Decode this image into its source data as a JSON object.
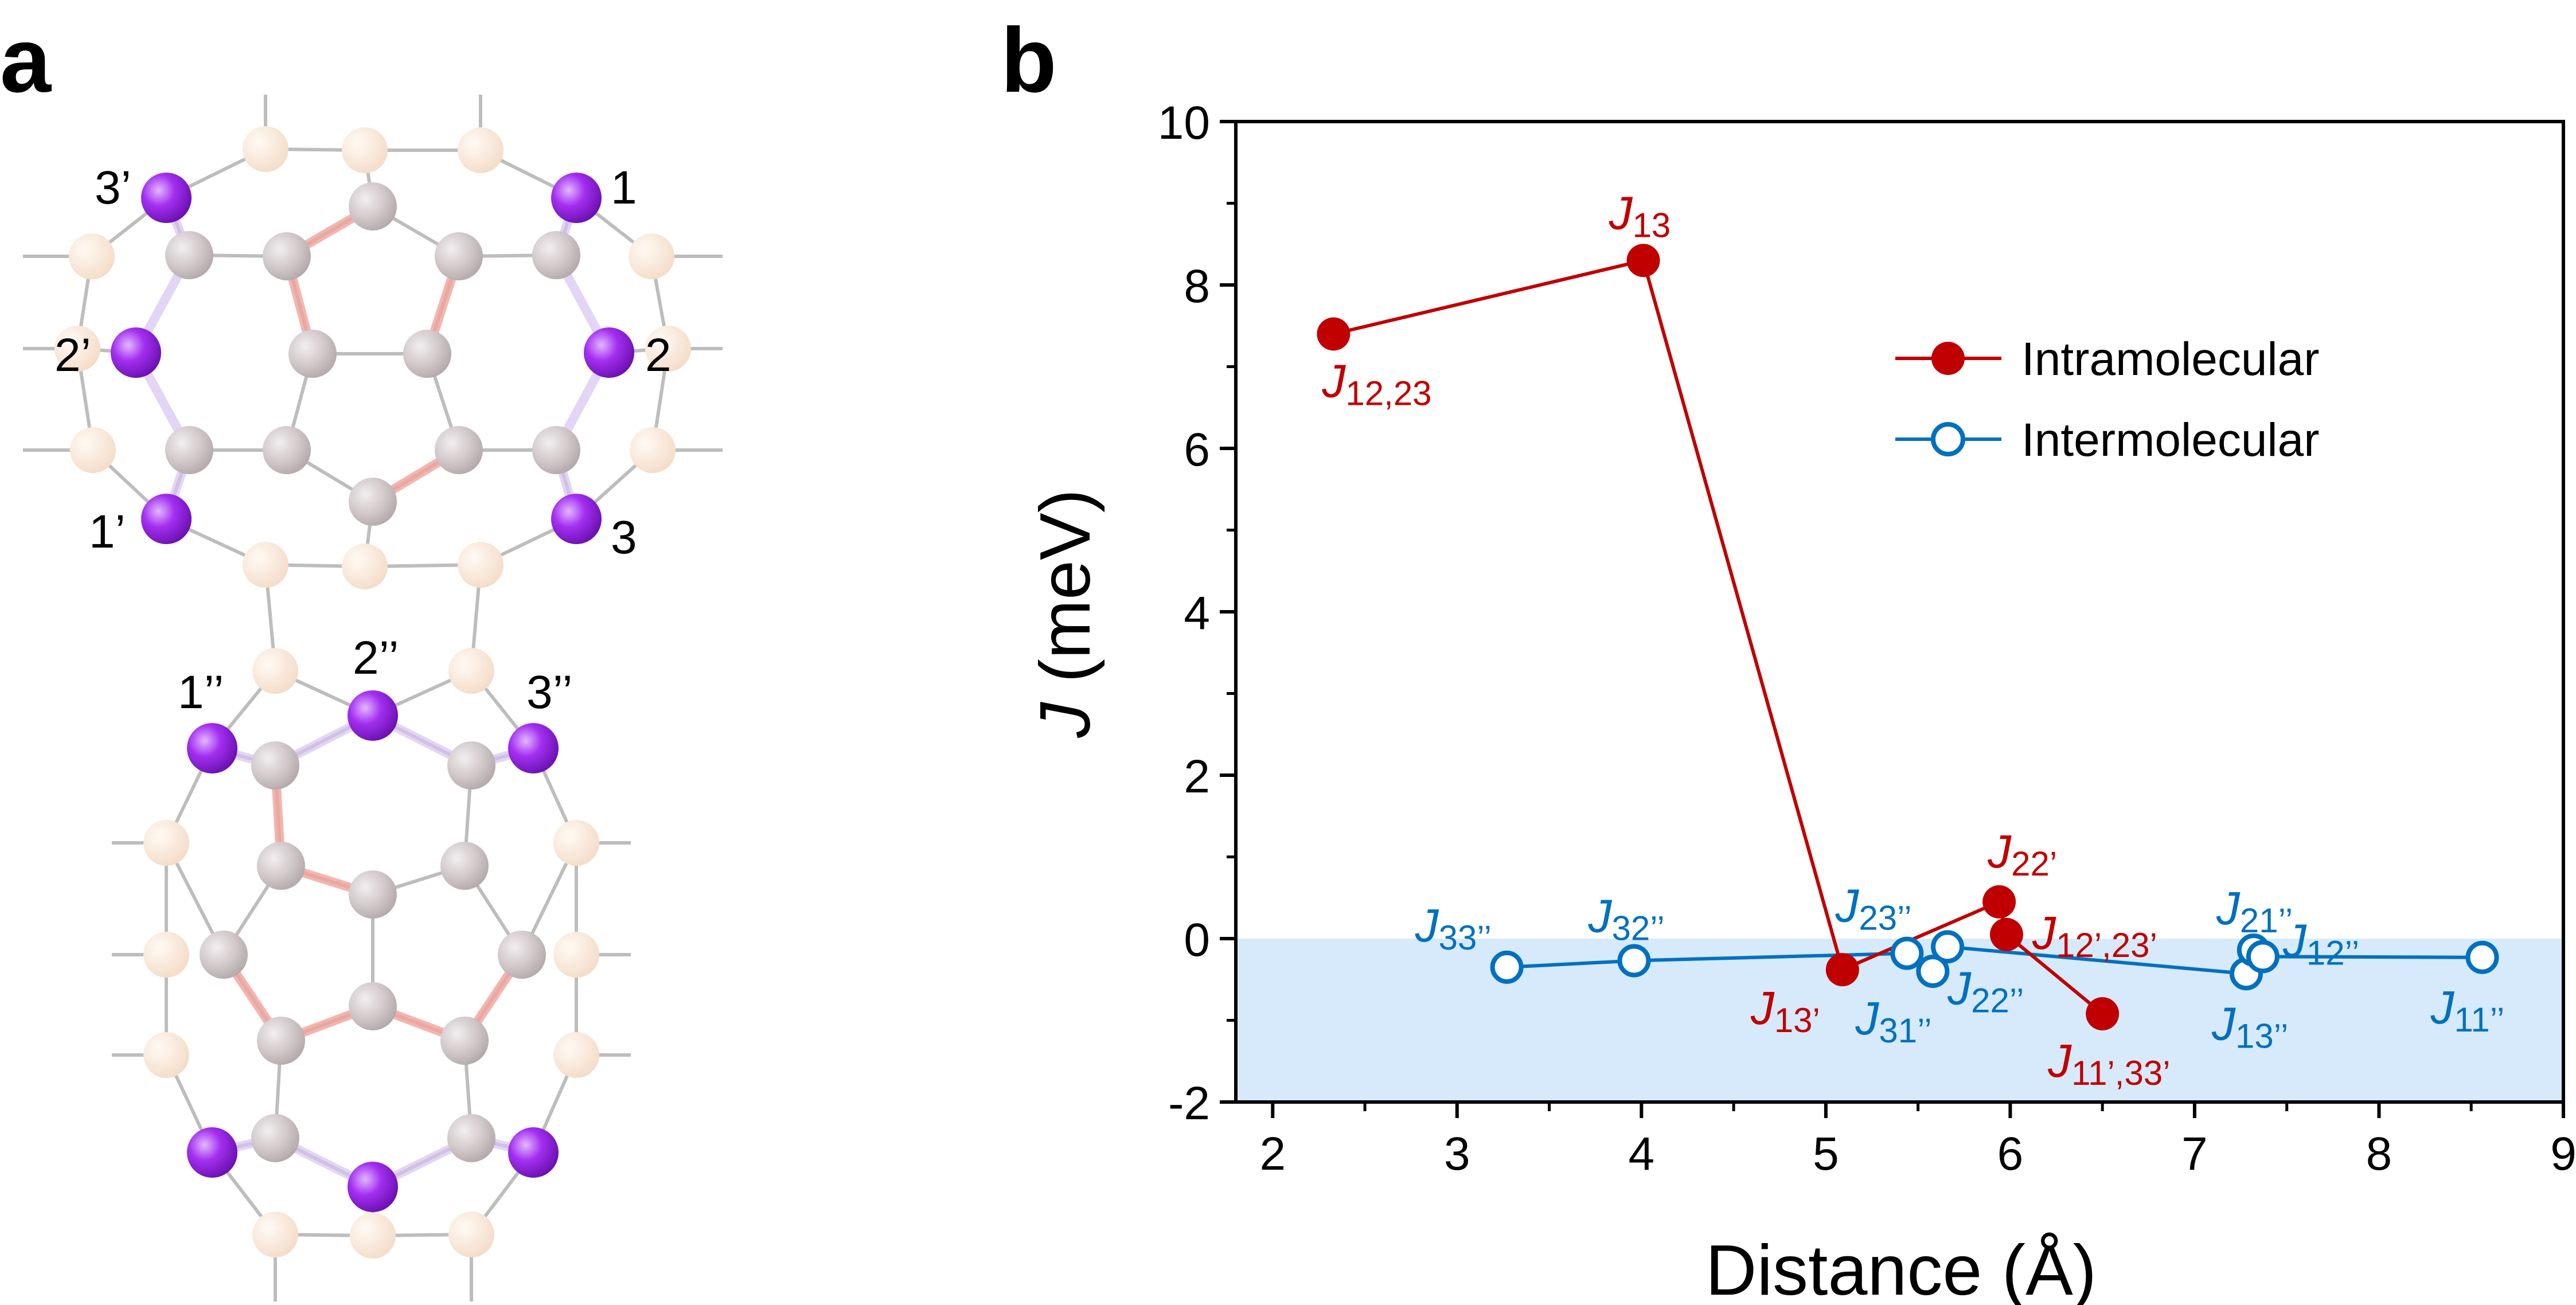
{
  "panels": {
    "a": "a",
    "b": "b"
  },
  "structure": {
    "atom_labels": [
      "3’",
      "1",
      "2’",
      "2",
      "1’",
      "3",
      "1’’",
      "2’’",
      "3’’"
    ]
  },
  "colors": {
    "intramolecular": "#c00000",
    "intermolecular": "#0070c0",
    "negative_region": "#d6eafb",
    "magnetic_atom": "#a020f0",
    "carbon_atom": "#cfc6c8",
    "outer_atom": "#f7e3d2",
    "bond": "#bdbdbd",
    "highlight_bond": "#f2a39c",
    "magnetic_bond": "#d8c4f2"
  },
  "chart_data": {
    "type": "line",
    "xlabel": "Distance (Å)",
    "ylabel_italic": "J",
    "ylabel_rest": " (meV)",
    "xlim": [
      1.8,
      9
    ],
    "ylim": [
      -2,
      10
    ],
    "xticks": [
      "2",
      "3",
      "4",
      "5",
      "6",
      "7",
      "8",
      "9"
    ],
    "yticks": [
      "-2",
      "0",
      "2",
      "4",
      "6",
      "8",
      "10"
    ],
    "negative_region": [
      -2,
      0
    ],
    "legend_position": "upper-right",
    "series": [
      {
        "name": "Intramolecular",
        "marker": "filled-circle",
        "x": [
          2.33,
          4.01,
          5.09,
          5.94,
          5.98,
          6.5
        ],
        "y": [
          7.4,
          8.3,
          -0.38,
          0.45,
          0.05,
          -0.92
        ],
        "labels": [
          {
            "main": "J",
            "sub": "12,23"
          },
          {
            "main": "J",
            "sub": "13"
          },
          {
            "main": "J",
            "sub": "13’"
          },
          {
            "main": "J",
            "sub": "22’"
          },
          {
            "main": "J",
            "sub": "12’,23’"
          },
          {
            "main": "J",
            "sub": "11’,33’"
          }
        ]
      },
      {
        "name": "Intermolecular",
        "marker": "open-circle",
        "x": [
          3.27,
          3.96,
          5.44,
          5.58,
          5.66,
          7.28,
          7.32,
          7.37,
          8.56
        ],
        "y": [
          -0.35,
          -0.27,
          -0.18,
          -0.4,
          -0.1,
          -0.43,
          -0.14,
          -0.22,
          -0.23
        ],
        "labels": [
          {
            "main": "J",
            "sub": "33’’"
          },
          {
            "main": "J",
            "sub": "32’’"
          },
          {
            "main": "J",
            "sub": "23’’"
          },
          {
            "main": "J",
            "sub": "31’’"
          },
          {
            "main": "J",
            "sub": "22’’"
          },
          {
            "main": "J",
            "sub": "13’’"
          },
          {
            "main": "J",
            "sub": "21’’"
          },
          {
            "main": "J",
            "sub": "12’’"
          },
          {
            "main": "J",
            "sub": "11’’"
          }
        ]
      }
    ]
  }
}
